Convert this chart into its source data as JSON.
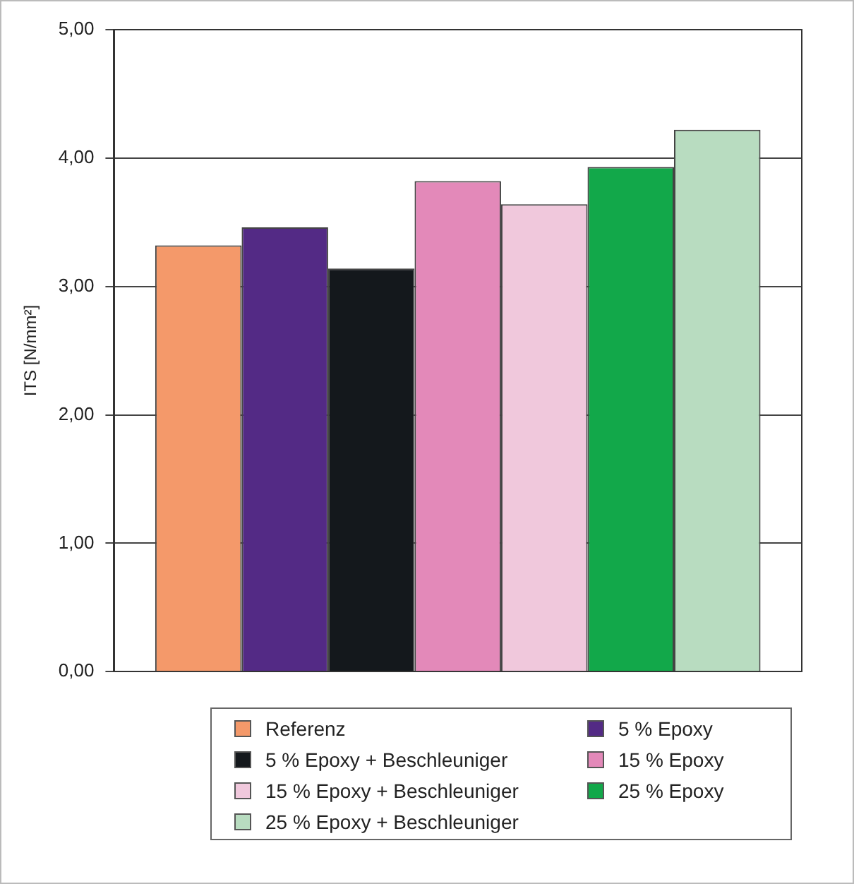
{
  "chart_data": {
    "type": "bar",
    "ylabel": "ITS [N/mm²]",
    "categories": [
      null
    ],
    "series": [
      {
        "name": "Referenz",
        "color": "#f4996a",
        "values": [
          3.32
        ]
      },
      {
        "name": "5 % Epoxy",
        "color": "#532a85",
        "values": [
          3.46
        ]
      },
      {
        "name": "5 % Epoxy + Beschleuniger",
        "color": "#14181c",
        "values": [
          3.14
        ]
      },
      {
        "name": "15 % Epoxy",
        "color": "#e389b9",
        "values": [
          3.82
        ]
      },
      {
        "name": "15 % Epoxy + Beschleuniger",
        "color": "#f0c8dc",
        "values": [
          3.64
        ]
      },
      {
        "name": "25 % Epoxy",
        "color": "#12a84a",
        "values": [
          3.93
        ]
      },
      {
        "name": "25 % Epoxy + Beschleuniger",
        "color": "#b8dcc0",
        "values": [
          4.22
        ]
      }
    ],
    "ylim": [
      0,
      5
    ],
    "yticks": [
      {
        "value": 0,
        "label": "0,00"
      },
      {
        "value": 1,
        "label": "1,00"
      },
      {
        "value": 2,
        "label": "2,00"
      },
      {
        "value": 3,
        "label": "3,00"
      },
      {
        "value": 4,
        "label": "4,00"
      },
      {
        "value": 5,
        "label": "5,00"
      }
    ],
    "grid": "y",
    "legend": "bottom"
  }
}
